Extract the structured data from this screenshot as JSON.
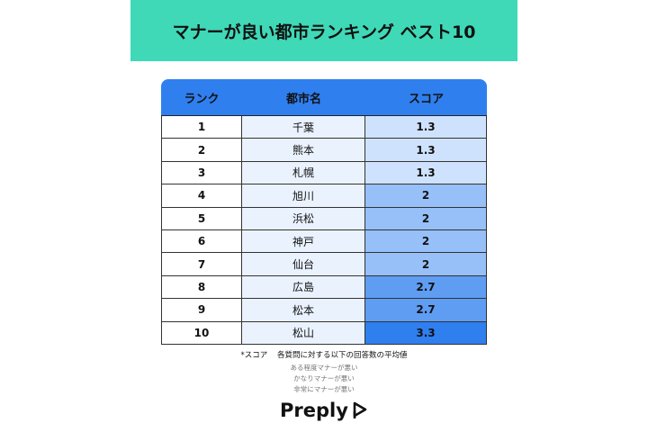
{
  "header": {
    "title": "マナーが良い都市ランキング ベスト10"
  },
  "table": {
    "columns": [
      "ランク",
      "都市名",
      "スコア"
    ],
    "rows": [
      [
        1,
        "千葉",
        1.3
      ],
      [
        2,
        "熊本",
        1.3
      ],
      [
        3,
        "札幌",
        1.3
      ],
      [
        4,
        "旭川",
        2
      ],
      [
        5,
        "浜松",
        2
      ],
      [
        6,
        "神戸",
        2
      ],
      [
        7,
        "仙台",
        2
      ],
      [
        8,
        "広島",
        2.7
      ],
      [
        9,
        "松本",
        2.7
      ],
      [
        10,
        "松山",
        3.3
      ]
    ]
  },
  "footnote": {
    "label": "*スコア",
    "text": "各質問に対する以下の回答数の平均値",
    "lines": [
      "ある程度マナーが悪い",
      "かなりマナーが悪い",
      "非常にマナーが悪い"
    ]
  },
  "logo": "Preply"
}
